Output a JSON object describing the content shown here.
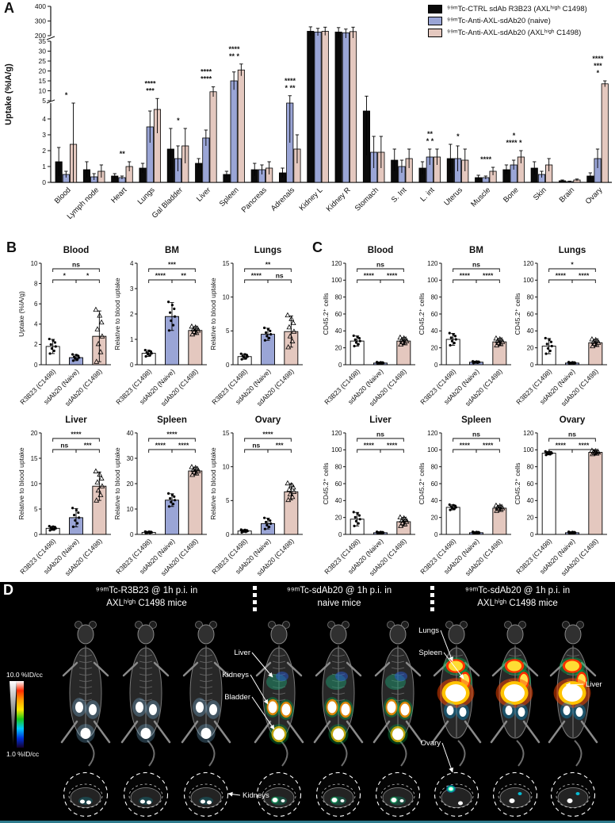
{
  "panels": {
    "a_label": "A",
    "b_label": "B",
    "c_label": "C",
    "d_label": "D"
  },
  "legend": {
    "items": [
      {
        "label": "⁹⁹ᵐTc-CTRL sdAb R3B23 (AXLʰⁱᵍʰ C1498)",
        "color": "#0a0a0a"
      },
      {
        "label": "⁹⁹ᵐTc-Anti-AXL-sdAb20 (naive)",
        "color": "#9aa5d6"
      },
      {
        "label": "⁹⁹ᵐTc-Anti-AXL-sdAb20 (AXLʰⁱᵍʰ C1498)",
        "color": "#e4c8bf"
      }
    ]
  },
  "chart_data": [
    {
      "id": "panel_a_biodistribution",
      "type": "bar",
      "ylabel": "Uptake (%IA/g)",
      "axis_break_segments": [
        [
          0,
          5
        ],
        [
          5,
          35
        ],
        [
          200,
          400
        ]
      ],
      "yticks_segments": [
        [
          0,
          1,
          2,
          3,
          4
        ],
        [
          5,
          10,
          15,
          20,
          25,
          30,
          35
        ],
        [
          200,
          300,
          400
        ]
      ],
      "categories": [
        "Blood",
        "Lymph node",
        "Heart",
        "Lungs",
        "Gal Bladder",
        "Liver",
        "Spleen",
        "Pancreas",
        "Adrenals",
        "Kidney L",
        "Kidney R",
        "Stomach",
        "S. Int",
        "L. int",
        "Uterus",
        "Muscle",
        "Bone",
        "Skin",
        "Brain",
        "Ovary"
      ],
      "series": [
        {
          "name": "⁹⁹ᵐTc-CTRL sdAb R3B23 (AXLʰⁱᵍʰ C1498)",
          "color": "#0a0a0a",
          "values": [
            1.3,
            0.8,
            0.4,
            0.9,
            2.1,
            1.2,
            0.5,
            0.8,
            0.6,
            230,
            225,
            4.5,
            1.4,
            0.9,
            1.5,
            0.3,
            0.8,
            0.9,
            0.1,
            0.4
          ],
          "errors": [
            0.9,
            0.5,
            0.15,
            0.3,
            1.3,
            0.3,
            0.2,
            0.4,
            0.3,
            30,
            30,
            2.8,
            0.7,
            0.4,
            0.9,
            0.15,
            0.3,
            0.4,
            0.05,
            0.2
          ]
        },
        {
          "name": "⁹⁹ᵐTc-Anti-AXL-sdAb20 (naive)",
          "color": "#9aa5d6",
          "values": [
            0.5,
            0.35,
            0.3,
            3.5,
            1.5,
            2.8,
            15,
            0.8,
            5.0,
            225,
            220,
            1.9,
            1.0,
            1.6,
            1.5,
            0.3,
            1.1,
            0.5,
            0.05,
            1.5
          ],
          "errors": [
            0.2,
            0.2,
            0.1,
            1.0,
            0.8,
            0.5,
            4.5,
            0.3,
            2.5,
            25,
            25,
            1.0,
            0.4,
            0.5,
            0.8,
            0.1,
            0.3,
            0.2,
            0.03,
            0.6
          ]
        },
        {
          "name": "⁹⁹ᵐTc-Anti-AXL-sdAb20 (AXLʰⁱᵍʰ C1498)",
          "color": "#e4c8bf",
          "values": [
            2.4,
            0.7,
            1.0,
            4.6,
            2.3,
            9.5,
            20.5,
            0.9,
            2.1,
            230,
            228,
            1.9,
            1.5,
            1.6,
            1.4,
            0.7,
            1.6,
            1.1,
            0.15,
            13.5
          ],
          "errors": [
            2.6,
            0.4,
            0.3,
            1.5,
            1.1,
            2.5,
            3.0,
            0.4,
            0.9,
            28,
            30,
            1.0,
            0.6,
            0.5,
            0.7,
            0.25,
            0.4,
            0.4,
            0.06,
            1.5
          ]
        }
      ],
      "significance": {
        "Blood": [
          "*"
        ],
        "Heart": [
          "**"
        ],
        "Lungs": [
          "****",
          "***"
        ],
        "Gal Bladder": [
          "*"
        ],
        "Liver": [
          "****",
          "****"
        ],
        "Spleen": [
          "****",
          "** *"
        ],
        "Adrenals": [
          "****",
          "* **"
        ],
        "L. int": [
          "**",
          "* *"
        ],
        "Uterus": [
          "*"
        ],
        "Muscle": [
          "****"
        ],
        "Bone": [
          "*",
          "**** *"
        ],
        "Ovary": [
          "****",
          "***",
          "*"
        ]
      }
    },
    {
      "id": "panel_b_uptake_relative_to_blood",
      "type": "bar",
      "categories": [
        "R3B23 (C1498)",
        "sdAb20 (Naive)",
        "sdAb20 (C1498)"
      ],
      "colors": [
        "#ffffff",
        "#9aa5d6",
        "#e4c8bf"
      ],
      "markers": [
        "dot",
        "dot",
        "triangle"
      ],
      "charts": [
        {
          "title": "Blood",
          "ylabel": "Uptake (%IA/g)",
          "ymax": 10,
          "yticks": [
            0,
            2,
            4,
            6,
            8,
            10
          ],
          "values": [
            1.8,
            0.7,
            2.8
          ],
          "errors": [
            0.7,
            0.3,
            2.5
          ],
          "sig_top": "ns",
          "sig_left": "*",
          "sig_right": "*"
        },
        {
          "title": "BM",
          "ylabel": "Relative to blood uptake",
          "ymax": 4,
          "yticks": [
            0,
            1,
            2,
            3,
            4
          ],
          "values": [
            0.45,
            1.9,
            1.35
          ],
          "errors": [
            0.12,
            0.55,
            0.15
          ],
          "sig_top": "***",
          "sig_left": "****",
          "sig_right": "**"
        },
        {
          "title": "Lungs",
          "ylabel": "Relative to blood uptake",
          "ymax": 15,
          "yticks": [
            0,
            5,
            10,
            15
          ],
          "values": [
            1.2,
            4.5,
            4.9
          ],
          "errors": [
            0.4,
            0.9,
            2.3
          ],
          "sig_top": "**",
          "sig_left": "****",
          "sig_right": "ns"
        },
        {
          "title": "Liver",
          "ylabel": "Relative to blood uptake",
          "ymax": 20,
          "yticks": [
            0,
            5,
            10,
            15,
            20
          ],
          "values": [
            1.2,
            3.3,
            9.5
          ],
          "errors": [
            0.4,
            1.8,
            2.8
          ],
          "sig_top": "****",
          "sig_left": "ns",
          "sig_right": "***"
        },
        {
          "title": "Spleen",
          "ylabel": "Relative to blood uptake",
          "ymax": 40,
          "yticks": [
            0,
            10,
            20,
            30,
            40
          ],
          "values": [
            0.8,
            13.5,
            25.0
          ],
          "errors": [
            0.3,
            2.5,
            1.5
          ],
          "sig_top": "****",
          "sig_left": "****",
          "sig_right": "****"
        },
        {
          "title": "Ovary",
          "ylabel": "Relative to blood uptake",
          "ymax": 15,
          "yticks": [
            0,
            5,
            10,
            15
          ],
          "values": [
            0.5,
            1.6,
            6.3
          ],
          "errors": [
            0.2,
            0.8,
            1.2
          ],
          "sig_top": "****",
          "sig_left": "ns",
          "sig_right": "***"
        }
      ]
    },
    {
      "id": "panel_c_cd452_cells",
      "type": "bar",
      "categories": [
        "R3B23 (C1498)",
        "sdAb20 (Naive)",
        "sdAb20 (C1498)"
      ],
      "colors": [
        "#ffffff",
        "#9aa5d6",
        "#e4c8bf"
      ],
      "markers": [
        "dot",
        "dot",
        "triangle"
      ],
      "charts": [
        {
          "title": "Blood",
          "ylabel": "CD45.2⁺ cells",
          "ymax": 120,
          "yticks": [
            0,
            20,
            40,
            60,
            80,
            100,
            120
          ],
          "values": [
            28,
            2,
            28
          ],
          "errors": [
            6,
            1,
            4
          ],
          "sig_top": "ns",
          "sig_left": "****",
          "sig_right": "****"
        },
        {
          "title": "BM",
          "ylabel": "CD45.2⁺ cells",
          "ymax": 120,
          "yticks": [
            0,
            20,
            40,
            60,
            80,
            100,
            120
          ],
          "values": [
            30,
            3,
            27
          ],
          "errors": [
            7,
            1,
            4
          ],
          "sig_top": "ns",
          "sig_left": "****",
          "sig_right": "****"
        },
        {
          "title": "Lungs",
          "ylabel": "CD45.2⁺ cells",
          "ymax": 120,
          "yticks": [
            0,
            20,
            40,
            60,
            80,
            100,
            120
          ],
          "values": [
            22,
            2,
            26
          ],
          "errors": [
            9,
            1,
            4
          ],
          "sig_top": "*",
          "sig_left": "****",
          "sig_right": "****"
        },
        {
          "title": "Liver",
          "ylabel": "CD45.2⁺ cells",
          "ymax": 120,
          "yticks": [
            0,
            20,
            40,
            60,
            80,
            100,
            120
          ],
          "values": [
            18,
            2,
            15
          ],
          "errors": [
            8,
            1,
            5
          ],
          "sig_top": "ns",
          "sig_left": "****",
          "sig_right": "****"
        },
        {
          "title": "Spleen",
          "ylabel": "CD45.2⁺ cells",
          "ymax": 120,
          "yticks": [
            0,
            20,
            40,
            60,
            80,
            100,
            120
          ],
          "values": [
            32,
            2,
            31
          ],
          "errors": [
            3,
            1,
            3
          ],
          "sig_top": "ns",
          "sig_left": "****",
          "sig_right": "****"
        },
        {
          "title": "Ovary",
          "ylabel": "CD45.2⁺ cells",
          "ymax": 120,
          "yticks": [
            0,
            20,
            40,
            60,
            80,
            100,
            120
          ],
          "values": [
            96,
            2,
            97
          ],
          "errors": [
            2,
            1,
            2
          ],
          "sig_top": "ns",
          "sig_left": "****",
          "sig_right": "****"
        }
      ]
    }
  ],
  "panel_d": {
    "groups": [
      {
        "title_line1": "⁹⁹ᵐTc-R3B23 @ 1h p.i. in",
        "title_line2": "AXLʰⁱᵍʰ C1498 mice"
      },
      {
        "title_line1": "⁹⁹ᵐTc-sdAb20 @ 1h p.i. in",
        "title_line2": "naive mice"
      },
      {
        "title_line1": "⁹⁹ᵐTc-sdAb20 @ 1h p.i. in",
        "title_line2": "AXLʰⁱᵍʰ C1498 mice"
      }
    ],
    "scale": {
      "top": "10.0 %ID/cc",
      "bottom": "1.0 %ID/cc"
    },
    "organ_labels": [
      "Liver",
      "Kidneys",
      "Bladder",
      "Lungs",
      "Spleen",
      "Liver",
      "Ovary",
      "Kidneys"
    ]
  }
}
